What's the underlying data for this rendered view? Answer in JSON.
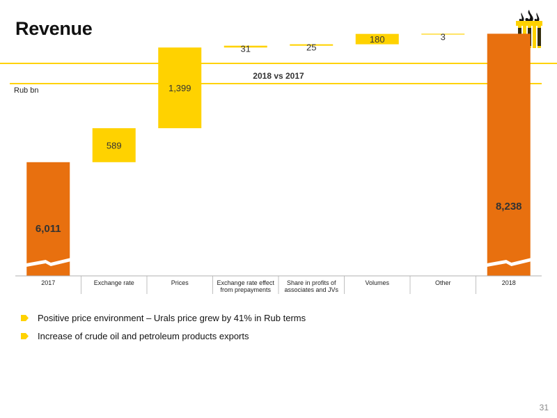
{
  "header": {
    "title": "Revenue"
  },
  "chart_data": {
    "type": "bar",
    "subtitle": "2018 vs 2017",
    "unit_label": "Rub bn",
    "categories": [
      "2017",
      "Exchange rate",
      "Prices",
      "Exchange rate effect from prepayments",
      "Share in profits of associates and JVs",
      "Volumes",
      "Other",
      "2018"
    ],
    "category_lines": [
      [
        "2017"
      ],
      [
        "Exchange rate"
      ],
      [
        "Prices"
      ],
      [
        "Exchange rate effect",
        "from prepayments"
      ],
      [
        "Share in profits of",
        "associates and JVs"
      ],
      [
        "Volumes"
      ],
      [
        "Other"
      ],
      [
        "2018"
      ]
    ],
    "values": [
      6011,
      589,
      1399,
      31,
      25,
      180,
      3,
      8238
    ],
    "value_labels": [
      "6,011",
      "589",
      "1,399",
      "31",
      "25",
      "180",
      "3",
      "8,238"
    ],
    "bar_kinds": [
      "total",
      "delta",
      "delta",
      "delta",
      "delta",
      "delta",
      "delta",
      "total"
    ],
    "axis_break": true,
    "colors": {
      "total": "#e8700f",
      "delta": "#ffd200",
      "axis": "#b0b0b0"
    }
  },
  "bullets": [
    "Positive price environment – Urals price grew by 41% in Rub terms",
    "Increase of crude oil and petroleum products exports"
  ],
  "footer": {
    "page_number": "31"
  }
}
